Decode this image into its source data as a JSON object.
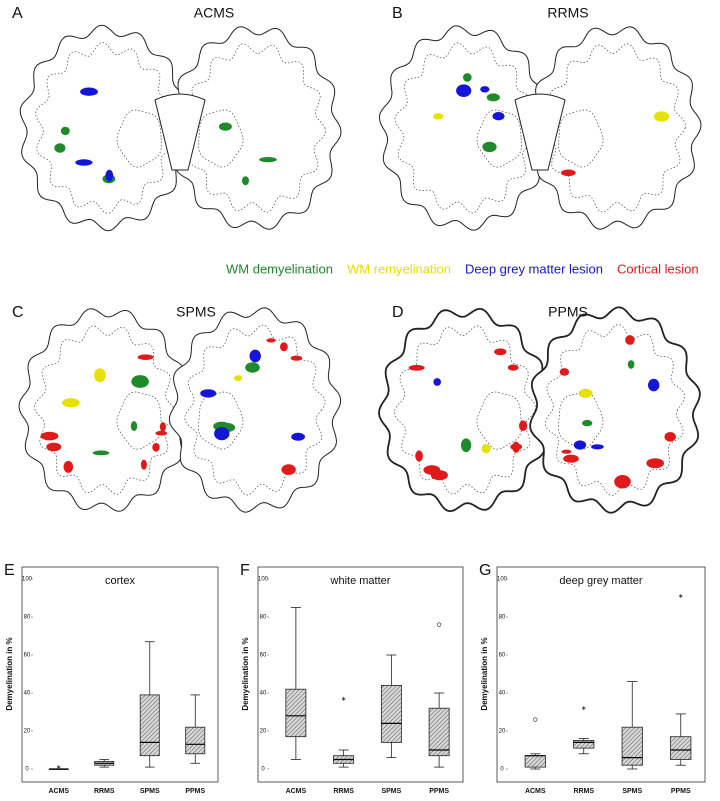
{
  "figure": {
    "panels": [
      {
        "letter": "A",
        "title": "ACMS"
      },
      {
        "letter": "B",
        "title": "RRMS"
      },
      {
        "letter": "C",
        "title": "SPMS"
      },
      {
        "letter": "D",
        "title": "PPMS"
      }
    ],
    "legend": [
      {
        "text": "WM demyelination",
        "color": "#1f8a2a"
      },
      {
        "text": "WM remyelination",
        "color": "#e8e000"
      },
      {
        "text": "Deep grey matter lesion",
        "color": "#1515d8"
      },
      {
        "text": "Cortical lesion",
        "color": "#e01a1a"
      }
    ]
  },
  "chart_data": [
    {
      "type": "box",
      "letter": "E",
      "title": "cortex",
      "ylabel": "Demyelination in %",
      "categories": [
        "ACMS",
        "RRMS",
        "SPMS",
        "PPMS"
      ],
      "boxes": [
        {
          "min": 0,
          "q1": 0,
          "median": 0,
          "q3": 0,
          "max": 0,
          "outliers": [
            {
              "value": 1,
              "marker": "asterisk"
            }
          ]
        },
        {
          "min": 1,
          "q1": 2,
          "median": 3,
          "q3": 4,
          "max": 5,
          "outliers": []
        },
        {
          "min": 1,
          "q1": 7,
          "median": 14,
          "q3": 39,
          "max": 67,
          "outliers": []
        },
        {
          "min": 3,
          "q1": 8,
          "median": 13,
          "q3": 22,
          "max": 39,
          "outliers": []
        }
      ],
      "ylim": [
        0,
        100
      ],
      "yticks": [
        0,
        20,
        40,
        60,
        80,
        100
      ],
      "color": "#8a8a8a"
    },
    {
      "type": "box",
      "letter": "F",
      "title": "white matter",
      "ylabel": "Demyelination in %",
      "categories": [
        "ACMS",
        "RRMS",
        "SPMS",
        "PPMS"
      ],
      "boxes": [
        {
          "min": 5,
          "q1": 17,
          "median": 28,
          "q3": 42,
          "max": 85,
          "outliers": []
        },
        {
          "min": 1,
          "q1": 3,
          "median": 5,
          "q3": 7,
          "max": 10,
          "outliers": [
            {
              "value": 37,
              "marker": "asterisk"
            }
          ]
        },
        {
          "min": 6,
          "q1": 14,
          "median": 24,
          "q3": 44,
          "max": 60,
          "outliers": []
        },
        {
          "min": 1,
          "q1": 7,
          "median": 10,
          "q3": 32,
          "max": 40,
          "outliers": [
            {
              "value": 76,
              "marker": "circle"
            }
          ]
        }
      ],
      "ylim": [
        0,
        100
      ],
      "yticks": [
        0,
        20,
        40,
        60,
        80,
        100
      ],
      "color": "#8a8a8a"
    },
    {
      "type": "box",
      "letter": "G",
      "title": "deep grey matter",
      "ylabel": "Demyelination in %",
      "categories": [
        "ACMS",
        "RRMS",
        "SPMS",
        "PPMS"
      ],
      "boxes": [
        {
          "min": 0,
          "q1": 1,
          "median": 7,
          "q3": 7,
          "max": 8,
          "outliers": [
            {
              "value": 26,
              "marker": "circle"
            }
          ]
        },
        {
          "min": 8,
          "q1": 11,
          "median": 14,
          "q3": 15,
          "max": 16,
          "outliers": [
            {
              "value": 32,
              "marker": "asterisk"
            }
          ]
        },
        {
          "min": 0,
          "q1": 2,
          "median": 6,
          "q3": 22,
          "max": 46,
          "outliers": []
        },
        {
          "min": 2,
          "q1": 5,
          "median": 10,
          "q3": 17,
          "max": 29,
          "outliers": [
            {
              "value": 91,
              "marker": "asterisk"
            }
          ]
        }
      ],
      "ylim": [
        0,
        100
      ],
      "yticks": [
        0,
        20,
        40,
        60,
        80,
        100
      ],
      "color": "#8a8a8a"
    }
  ]
}
